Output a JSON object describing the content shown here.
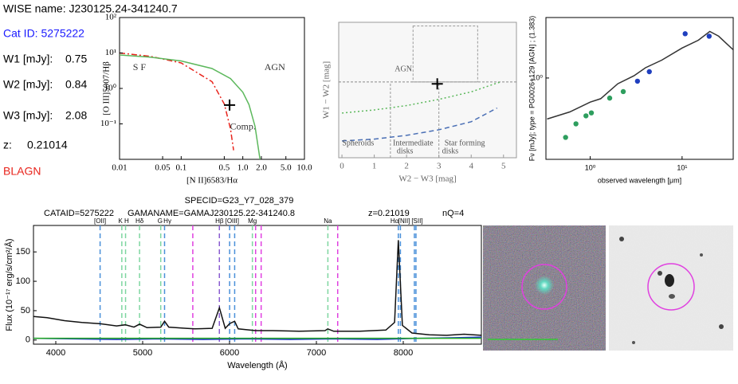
{
  "info": {
    "wise_name": "WISE name: J230125.24-341240.7",
    "cat_id": "Cat ID: 5275222",
    "fluxes": [
      {
        "label": "W1 [mJy]:",
        "value": 0.75
      },
      {
        "label": "W2 [mJy]:",
        "value": 0.84
      },
      {
        "label": "W3 [mJy]:",
        "value": 2.08
      }
    ],
    "redshift": {
      "label": "z:",
      "value": 0.21014
    },
    "class": "BLAGN"
  },
  "chart_data": [
    {
      "type": "line",
      "x_label": "[N II]6583/Hα",
      "y_label": "[O III]5007/Hβ",
      "xlog": true,
      "ylog": true,
      "xlim": [
        0.01,
        10
      ],
      "ylim": [
        0.01,
        100
      ],
      "xticks": [
        0.01,
        0.05,
        0.1,
        0.5,
        {
          "value": 1,
          "label": "1.0"
        },
        {
          "value": 2,
          "label": "2.0"
        },
        {
          "value": 5,
          "label": "5.0"
        },
        {
          "value": 10,
          "label": "10.0"
        }
      ],
      "yticks": [
        {
          "value": 0.1,
          "label": "10⁻¹"
        },
        {
          "value": 1,
          "label": "10⁰"
        },
        {
          "value": 10,
          "label": "10¹"
        },
        {
          "value": 100,
          "label": "10²"
        }
      ],
      "series": [
        {
          "color": "#e8241c",
          "dash": "7 3 2 3",
          "x": [
            0.01,
            0.0316,
            0.1,
            0.316,
            0.501,
            0.631,
            0.708
          ],
          "values": [
            10.0,
            8.05,
            5.24,
            1.55,
            0.36,
            0.072,
            0.018
          ]
        },
        {
          "color": "#5cb85c",
          "dash": "none",
          "x": [
            0.01,
            0.0316,
            0.1,
            0.316,
            0.631,
            1.0,
            1.26,
            1.58,
            1.91
          ],
          "values": [
            8.77,
            7.59,
            5.96,
            3.64,
            1.9,
            0.78,
            0.35,
            0.085,
            0.0095
          ]
        }
      ],
      "points": [
        {
          "x": 0.61,
          "y": 0.34,
          "marker": "cross",
          "color": "#000000"
        }
      ],
      "annotations": [
        {
          "text": "S F",
          "x": 0.021,
          "y": 3.8
        },
        {
          "text": "AGN",
          "x": 3.3,
          "y": 3.8
        },
        {
          "text": "Comp.",
          "x": 1.0,
          "y": 0.08
        }
      ]
    },
    {
      "type": "line",
      "x_label": "W2 − W3 [mag]",
      "y_label": "W1 − W2 [mag]",
      "xlim": [
        -0.1,
        5.4
      ],
      "ylim": [
        -0.42,
        1.76
      ],
      "xticks": [
        0,
        1,
        2,
        3,
        4,
        5
      ],
      "series": [
        {
          "color": "#5cb85c",
          "dash": "2 3",
          "x": [
            0,
            1,
            2,
            3,
            4,
            4.9
          ],
          "values": [
            0.3,
            0.35,
            0.42,
            0.52,
            0.64,
            0.8
          ]
        },
        {
          "color": "#4a6fb5",
          "dash": "6 4",
          "x": [
            0,
            1,
            2,
            3,
            4,
            4.8
          ],
          "values": [
            -0.15,
            -0.12,
            -0.06,
            0.03,
            0.16,
            0.38
          ]
        }
      ],
      "x_dividers": [
        1.5,
        3.0
      ],
      "y_divider": 0.8,
      "agn_box": [
        2.2,
        4.2,
        0.8,
        1.7
      ],
      "points": [
        {
          "x": 2.95,
          "y": 0.77,
          "marker": "cross",
          "color": "#000000"
        }
      ],
      "annotations": [
        {
          "text": "AGN",
          "x": 1.9,
          "y": 1.0
        },
        {
          "text": "Spheroids",
          "x": 0.5,
          "y": -0.19
        },
        {
          "text": "Intermediate",
          "x": 2.2,
          "y": -0.19
        },
        {
          "text": "disks",
          "x": 1.95,
          "y": -0.32
        },
        {
          "text": "Star forming",
          "x": 3.8,
          "y": -0.19
        },
        {
          "text": "disks",
          "x": 3.35,
          "y": -0.32
        }
      ]
    },
    {
      "type": "line",
      "x_label": "observed wavelength [μm]",
      "y_label": "Fν [mJy]; type = PG0026+129 [AGN] ; (1.383)",
      "xlog": true,
      "ylog": true,
      "xlim": [
        0.33,
        36
      ],
      "ylim": [
        0.118,
        4.9
      ],
      "xticks": [
        {
          "value": 1,
          "label": "10⁰"
        },
        {
          "value": 10,
          "label": "10¹"
        }
      ],
      "yticks": [
        {
          "value": 1,
          "label": "10⁰"
        }
      ],
      "series": [
        {
          "color": "#333333",
          "dash": "none",
          "x": [
            0.34,
            0.6,
            1,
            1.3,
            2,
            3,
            4,
            6,
            10,
            15,
            20,
            25,
            30,
            36
          ],
          "values": [
            0.34,
            0.41,
            0.53,
            0.58,
            0.86,
            1.06,
            1.31,
            1.6,
            2.2,
            2.7,
            3.4,
            3.0,
            2.5,
            2.1
          ]
        }
      ],
      "points": [
        {
          "x": 0.54,
          "y": 0.21,
          "marker": "dot",
          "color": "#2e9e5e"
        },
        {
          "x": 0.7,
          "y": 0.3,
          "marker": "dot",
          "color": "#2e9e5e"
        },
        {
          "x": 0.9,
          "y": 0.37,
          "marker": "dot",
          "color": "#2e9e5e"
        },
        {
          "x": 1.03,
          "y": 0.4,
          "marker": "dot",
          "color": "#2e9e5e"
        },
        {
          "x": 1.63,
          "y": 0.59,
          "marker": "dot",
          "color": "#2e9e5e"
        },
        {
          "x": 2.29,
          "y": 0.7,
          "marker": "dot",
          "color": "#2e9e5e"
        },
        {
          "x": 3.27,
          "y": 0.92,
          "marker": "dot",
          "color": "#1f3fbf"
        },
        {
          "x": 4.4,
          "y": 1.18,
          "marker": "dot",
          "color": "#1f3fbf"
        },
        {
          "x": 10.8,
          "y": 3.2,
          "marker": "dot",
          "color": "#1f3fbf"
        },
        {
          "x": 19.7,
          "y": 3.0,
          "marker": "dot",
          "color": "#1f3fbf"
        }
      ]
    },
    {
      "type": "line",
      "title": "SPECID=G23_Y7_028_379",
      "header": [
        "CATAID=5275222",
        "GAMANAME=GAMAJ230125.22-341240.8",
        "z=0.21019",
        "nQ=4"
      ],
      "x_label": "Wavelength (Å)",
      "y_label": "Flux (10⁻¹⁷ erg/s/cm²/Å)",
      "xlim": [
        3743,
        8899
      ],
      "ylim": [
        -7,
        195
      ],
      "xticks": [
        4000,
        5000,
        6000,
        7000,
        8000
      ],
      "yticks": [
        0,
        50,
        100,
        150
      ],
      "series": [
        {
          "color": "#111111",
          "dash": "none",
          "x": [
            3743,
            3900,
            4100,
            4300,
            4500,
            4700,
            4800,
            4900,
            4964,
            5050,
            5208,
            5252,
            5300,
            5500,
            5600,
            5800,
            5883,
            5950,
            6001,
            6059,
            6100,
            6300,
            6500,
            6800,
            7100,
            7130,
            7200,
            7500,
            7800,
            7900,
            7943,
            7990,
            8100,
            8300,
            8500,
            8700,
            8899
          ],
          "values": [
            40,
            38,
            33,
            30,
            28,
            24,
            26,
            22,
            27,
            21,
            22,
            32,
            22,
            20,
            19,
            20,
            55,
            20,
            28,
            32,
            19,
            16,
            16,
            15,
            16,
            19,
            15,
            15,
            17,
            30,
            170,
            25,
            12,
            9,
            8,
            10,
            8
          ]
        },
        {
          "color": "#2233cc",
          "dash": "none",
          "x": [
            3743,
            4200,
            4700,
            5200,
            5700,
            6200,
            6700,
            7200,
            7700,
            8200,
            8600,
            8899
          ],
          "values": [
            3,
            2,
            1,
            2,
            1,
            2,
            1,
            2,
            1,
            3,
            4,
            5
          ]
        },
        {
          "color": "#22aa22",
          "dash": "none",
          "x": [
            3743,
            8899
          ],
          "values": [
            3,
            3
          ]
        }
      ],
      "line_markers": [
        {
          "wavelength": 4510,
          "color": "#4a90d9"
        },
        {
          "wavelength": 4760,
          "color": "#7ed6a0"
        },
        {
          "wavelength": 4803,
          "color": "#7ed6a0"
        },
        {
          "wavelength": 4964,
          "color": "#7ed6a0"
        },
        {
          "wavelength": 5208,
          "color": "#7ed6a0"
        },
        {
          "wavelength": 5252,
          "color": "#4a90d9"
        },
        {
          "wavelength": 5577,
          "color": "#e040e0"
        },
        {
          "wavelength": 5883,
          "color": "#8a5cd0"
        },
        {
          "wavelength": 6001,
          "color": "#4a90d9"
        },
        {
          "wavelength": 6059,
          "color": "#4a90d9"
        },
        {
          "wavelength": 6263,
          "color": "#7ed6a0"
        },
        {
          "wavelength": 6300,
          "color": "#e040e0"
        },
        {
          "wavelength": 6364,
          "color": "#e040e0"
        },
        {
          "wavelength": 7132,
          "color": "#7ed6a0"
        },
        {
          "wavelength": 7245,
          "color": "#e040e0"
        },
        {
          "wavelength": 7943,
          "color": "#4a90d9"
        },
        {
          "wavelength": 7967,
          "color": "#4a90d9"
        },
        {
          "wavelength": 8128,
          "color": "#4a90d9"
        },
        {
          "wavelength": 8146,
          "color": "#4a90d9"
        }
      ],
      "line_labels": [
        {
          "text": "[OII]",
          "x": 4510
        },
        {
          "text": "K",
          "x": 4745
        },
        {
          "text": "H",
          "x": 4815
        },
        {
          "text": "Hδ",
          "x": 4964
        },
        {
          "text": "G",
          "x": 5200
        },
        {
          "text": "Hγ",
          "x": 5285
        },
        {
          "text": "Hβ",
          "x": 5883
        },
        {
          "text": "[OIII]",
          "x": 6030
        },
        {
          "text": "Mg",
          "x": 6263
        },
        {
          "text": "Na",
          "x": 7132
        },
        {
          "text": "Hα",
          "x": 7900
        },
        {
          "text": "[NII]",
          "x": 8010
        },
        {
          "text": "[SII]",
          "x": 8160
        }
      ]
    }
  ]
}
